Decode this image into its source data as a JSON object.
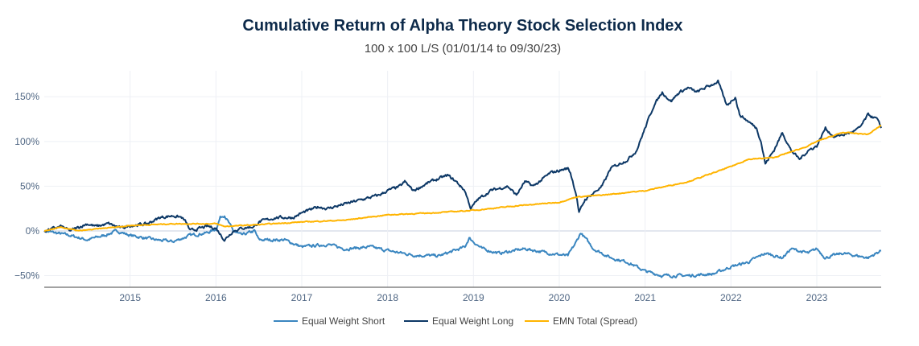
{
  "chart_data": {
    "type": "line",
    "title": "Cumulative Return of Alpha Theory Stock Selection Index",
    "subtitle": "100 x 100 L/S (01/01/14 to 09/30/23)",
    "xlabel": "",
    "ylabel": "",
    "x_range": [
      "2014-01-01",
      "2023-09-30"
    ],
    "ylim": [
      -63,
      179
    ],
    "y_ticks": [
      -50,
      0,
      50,
      100,
      150
    ],
    "y_tick_labels": [
      "−50%",
      "0%",
      "50%",
      "100%",
      "150%"
    ],
    "x_ticks": [
      2015,
      2016,
      2017,
      2018,
      2019,
      2020,
      2021,
      2022,
      2023
    ],
    "x_tick_labels": [
      "2015",
      "2016",
      "2017",
      "2018",
      "2019",
      "2020",
      "2021",
      "2022",
      "2023"
    ],
    "grid": true,
    "legend_position": "bottom",
    "series": [
      {
        "name": "Equal Weight Short",
        "color": "#3a86c0",
        "x": [
          2014.0,
          2014.3,
          2014.5,
          2014.7,
          2014.85,
          2015.0,
          2015.3,
          2015.5,
          2015.7,
          2015.9,
          2016.0,
          2016.05,
          2016.1,
          2016.2,
          2016.3,
          2016.45,
          2016.5,
          2016.8,
          2017.0,
          2017.3,
          2017.5,
          2017.8,
          2018.0,
          2018.3,
          2018.6,
          2018.9,
          2018.95,
          2019.1,
          2019.3,
          2019.6,
          2019.9,
          2020.1,
          2020.2,
          2020.25,
          2020.4,
          2020.6,
          2020.8,
          2021.0,
          2021.2,
          2021.5,
          2021.8,
          2022.0,
          2022.2,
          2022.4,
          2022.6,
          2022.7,
          2022.9,
          2023.0,
          2023.1,
          2023.3,
          2023.6,
          2023.75
        ],
        "y": [
          0,
          -5,
          -10,
          -5,
          0,
          -5,
          -10,
          -12,
          -5,
          -2,
          2,
          15,
          18,
          0,
          -5,
          0,
          -10,
          -10,
          -18,
          -15,
          -20,
          -18,
          -22,
          -27,
          -28,
          -18,
          -8,
          -20,
          -25,
          -20,
          -25,
          -28,
          -12,
          -2,
          -20,
          -30,
          -35,
          -45,
          -50,
          -50,
          -48,
          -40,
          -35,
          -25,
          -30,
          -20,
          -25,
          -20,
          -30,
          -25,
          -30,
          -22
        ]
      },
      {
        "name": "Equal Weight Long",
        "color": "#0d3866",
        "x": [
          2014.0,
          2014.2,
          2014.3,
          2014.5,
          2014.6,
          2014.75,
          2014.9,
          2015.0,
          2015.2,
          2015.35,
          2015.5,
          2015.6,
          2015.65,
          2015.7,
          2015.9,
          2016.0,
          2016.1,
          2016.2,
          2016.3,
          2016.45,
          2016.5,
          2016.7,
          2016.9,
          2017.0,
          2017.2,
          2017.3,
          2017.5,
          2017.7,
          2017.9,
          2018.0,
          2018.15,
          2018.2,
          2018.3,
          2018.5,
          2018.7,
          2018.8,
          2018.9,
          2018.97,
          2019.05,
          2019.2,
          2019.4,
          2019.5,
          2019.6,
          2019.7,
          2019.9,
          2020.1,
          2020.13,
          2020.2,
          2020.23,
          2020.3,
          2020.5,
          2020.6,
          2020.8,
          2020.9,
          2021.0,
          2021.1,
          2021.2,
          2021.3,
          2021.4,
          2021.5,
          2021.6,
          2021.7,
          2021.85,
          2021.95,
          2022.05,
          2022.1,
          2022.3,
          2022.35,
          2022.4,
          2022.5,
          2022.6,
          2022.7,
          2022.8,
          2022.9,
          2023.0,
          2023.1,
          2023.2,
          2023.4,
          2023.5,
          2023.6,
          2023.7,
          2023.75
        ],
        "y": [
          0,
          5,
          0,
          8,
          5,
          8,
          3,
          6,
          8,
          15,
          17,
          15,
          10,
          0,
          5,
          3,
          -10,
          0,
          3,
          5,
          10,
          15,
          15,
          20,
          27,
          25,
          30,
          35,
          40,
          45,
          50,
          55,
          45,
          55,
          62,
          55,
          45,
          25,
          35,
          45,
          50,
          40,
          55,
          50,
          65,
          70,
          65,
          40,
          20,
          35,
          50,
          70,
          80,
          90,
          115,
          140,
          155,
          145,
          155,
          160,
          155,
          160,
          167,
          140,
          150,
          130,
          115,
          100,
          75,
          90,
          110,
          90,
          80,
          90,
          95,
          115,
          105,
          110,
          115,
          130,
          125,
          115
        ]
      },
      {
        "name": "EMN Total (Spread)",
        "color": "#ffb400",
        "x": [
          2014.0,
          2014.2,
          2014.4,
          2015.0,
          2015.5,
          2016.0,
          2016.1,
          2016.5,
          2017.0,
          2017.5,
          2018.0,
          2018.5,
          2019.0,
          2019.5,
          2020.0,
          2020.2,
          2020.5,
          2021.0,
          2021.5,
          2021.8,
          2022.0,
          2022.2,
          2022.5,
          2022.75,
          2022.9,
          2023.0,
          2023.3,
          2023.6,
          2023.75
        ],
        "y": [
          0,
          4,
          0,
          6,
          8,
          8,
          5,
          7,
          10,
          12,
          18,
          20,
          23,
          28,
          32,
          38,
          40,
          45,
          55,
          65,
          72,
          80,
          82,
          90,
          95,
          100,
          110,
          108,
          118
        ]
      }
    ]
  }
}
